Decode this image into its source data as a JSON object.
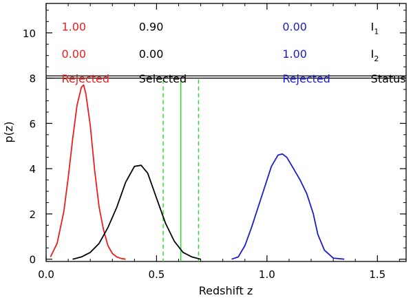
{
  "chart_data": {
    "type": "line",
    "xlabel": "Redshift  z",
    "ylabel": "p(z)",
    "xlim": [
      0.0,
      1.63
    ],
    "ylim": [
      -0.1,
      11.3
    ],
    "xticks": [
      {
        "v": 0.0,
        "label": "0.0"
      },
      {
        "v": 0.5,
        "label": "0.5"
      },
      {
        "v": 1.0,
        "label": "1.0"
      },
      {
        "v": 1.5,
        "label": "1.5"
      }
    ],
    "yticks": [
      {
        "v": 0,
        "label": "0"
      },
      {
        "v": 2,
        "label": "2"
      },
      {
        "v": 4,
        "label": "4"
      },
      {
        "v": 6,
        "label": "6"
      },
      {
        "v": 8,
        "label": "8"
      },
      {
        "v": 10,
        "label": "10"
      }
    ],
    "separator_y": [
      8.0,
      8.1
    ],
    "series": [
      {
        "color": "#ee1c1c",
        "x": [
          0.02,
          0.05,
          0.08,
          0.1,
          0.12,
          0.14,
          0.16,
          0.17,
          0.18,
          0.2,
          0.22,
          0.24,
          0.26,
          0.28,
          0.3,
          0.32,
          0.34,
          0.36
        ],
        "y": [
          0.1,
          0.7,
          2.1,
          3.6,
          5.3,
          6.8,
          7.6,
          7.7,
          7.3,
          5.9,
          3.9,
          2.3,
          1.3,
          0.6,
          0.25,
          0.1,
          0.03,
          0.0
        ]
      },
      {
        "color": "#000000",
        "x": [
          0.12,
          0.16,
          0.2,
          0.24,
          0.28,
          0.32,
          0.36,
          0.4,
          0.43,
          0.46,
          0.5,
          0.54,
          0.58,
          0.62,
          0.66,
          0.7
        ],
        "y": [
          0.0,
          0.1,
          0.3,
          0.7,
          1.4,
          2.3,
          3.4,
          4.1,
          4.15,
          3.8,
          2.7,
          1.6,
          0.8,
          0.3,
          0.1,
          0.0
        ]
      },
      {
        "color": "#1a1ad0",
        "x": [
          0.84,
          0.87,
          0.9,
          0.93,
          0.96,
          0.99,
          1.02,
          1.05,
          1.07,
          1.09,
          1.12,
          1.15,
          1.18,
          1.21,
          1.23,
          1.26,
          1.3,
          1.35
        ],
        "y": [
          0.0,
          0.1,
          0.6,
          1.4,
          2.3,
          3.2,
          4.1,
          4.6,
          4.65,
          4.5,
          4.0,
          3.5,
          2.9,
          2.0,
          1.1,
          0.4,
          0.05,
          0.0
        ]
      }
    ],
    "vlines": [
      {
        "x": 0.53,
        "style": "dashed",
        "color": "#22dd22"
      },
      {
        "x": 0.61,
        "style": "solid",
        "color": "#22dd22"
      },
      {
        "x": 0.69,
        "style": "dashed",
        "color": "#22dd22"
      }
    ],
    "table": {
      "columns": [
        {
          "x": 0.07,
          "color": "#ee1c1c",
          "cells": [
            "1.00",
            "0.00",
            "Rejected"
          ]
        },
        {
          "x": 0.42,
          "color": "#000000",
          "cells": [
            "0.90",
            "0.00",
            "Selected"
          ]
        },
        {
          "x": 1.07,
          "color": "#1a1ad0",
          "cells": [
            "0.00",
            "1.00",
            "Rejected"
          ]
        }
      ],
      "row_labels": [
        {
          "base": "I",
          "sub": "1"
        },
        {
          "base": "I",
          "sub": "2"
        },
        {
          "base": "Status",
          "sub": ""
        }
      ],
      "label_x": 1.47,
      "row_y": [
        10.1,
        8.9,
        7.8
      ]
    }
  }
}
